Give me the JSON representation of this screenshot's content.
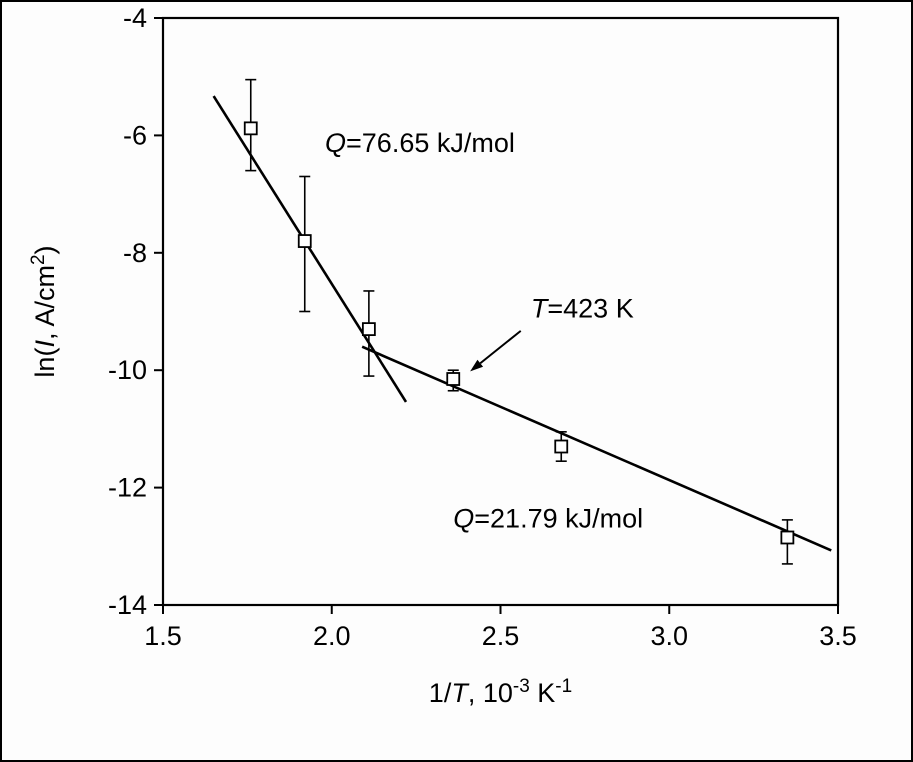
{
  "figure": {
    "background": "#fdfdfd",
    "border_color": "#000000"
  },
  "chart_data": {
    "type": "scatter",
    "title": "",
    "xlim": [
      1.5,
      3.5
    ],
    "ylim": [
      -14,
      -4
    ],
    "grid": false,
    "legend": null,
    "xlabel_parts": [
      {
        "t": "1/"
      },
      {
        "t": "T",
        "italic": true
      },
      {
        "t": ", 10"
      },
      {
        "t": "-3",
        "sup": true
      },
      {
        "t": " K"
      },
      {
        "t": "-1",
        "sup": true
      }
    ],
    "ylabel_parts": [
      {
        "t": "ln("
      },
      {
        "t": "I",
        "italic": true
      },
      {
        "t": ", A/cm"
      },
      {
        "t": "2",
        "sup": true
      },
      {
        "t": ")"
      }
    ],
    "x_ticks": [
      {
        "v": 1.5,
        "label": "1.5"
      },
      {
        "v": 2.0,
        "label": "2.0"
      },
      {
        "v": 2.5,
        "label": "2.5"
      },
      {
        "v": 3.0,
        "label": "3.0"
      },
      {
        "v": 3.5,
        "label": "3.5"
      }
    ],
    "y_ticks": [
      {
        "v": -14,
        "label": "-14"
      },
      {
        "v": -12,
        "label": "-12"
      },
      {
        "v": -10,
        "label": "-10"
      },
      {
        "v": -8,
        "label": "-8"
      },
      {
        "v": -6,
        "label": "-6"
      },
      {
        "v": -4,
        "label": "-4"
      }
    ],
    "series": [
      {
        "name": "current-density-data",
        "marker": "open-square",
        "points": [
          {
            "x": 1.76,
            "y": -5.88,
            "y_lo": -6.6,
            "y_hi": -5.05
          },
          {
            "x": 1.92,
            "y": -7.8,
            "y_lo": -9.0,
            "y_hi": -6.7
          },
          {
            "x": 2.11,
            "y": -9.3,
            "y_lo": -10.1,
            "y_hi": -8.65
          },
          {
            "x": 2.36,
            "y": -10.15,
            "y_lo": -10.35,
            "y_hi": -10.0
          },
          {
            "x": 2.68,
            "y": -11.3,
            "y_lo": -11.55,
            "y_hi": -11.05
          },
          {
            "x": 3.35,
            "y": -12.85,
            "y_lo": -13.3,
            "y_hi": -12.55
          }
        ]
      }
    ],
    "fit_lines": [
      {
        "name": "high-activation-segment",
        "x1": 1.65,
        "y1": -5.33,
        "x2": 2.22,
        "y2": -10.54
      },
      {
        "name": "low-activation-segment",
        "x1": 2.09,
        "y1": -9.6,
        "x2": 3.48,
        "y2": -13.07
      }
    ],
    "annotations": [
      {
        "name": "annotation-q-high",
        "x": 1.98,
        "y": -6.28,
        "parts": [
          {
            "t": "Q",
            "italic": true
          },
          {
            "t": "=76.65 kJ/mol"
          }
        ]
      },
      {
        "name": "annotation-t-423",
        "x": 2.59,
        "y": -9.1,
        "parts": [
          {
            "t": "T",
            "italic": true
          },
          {
            "t": "=423 K"
          }
        ]
      },
      {
        "name": "annotation-q-low",
        "x": 2.36,
        "y": -12.68,
        "parts": [
          {
            "t": "Q",
            "italic": true
          },
          {
            "t": "=21.79 kJ/mol"
          }
        ]
      }
    ],
    "arrow": {
      "x1": 2.56,
      "y1": -9.33,
      "x2": 2.41,
      "y2": -10.02
    },
    "colors": {
      "ink": "#000000",
      "marker_fill": "#ffffff"
    }
  }
}
